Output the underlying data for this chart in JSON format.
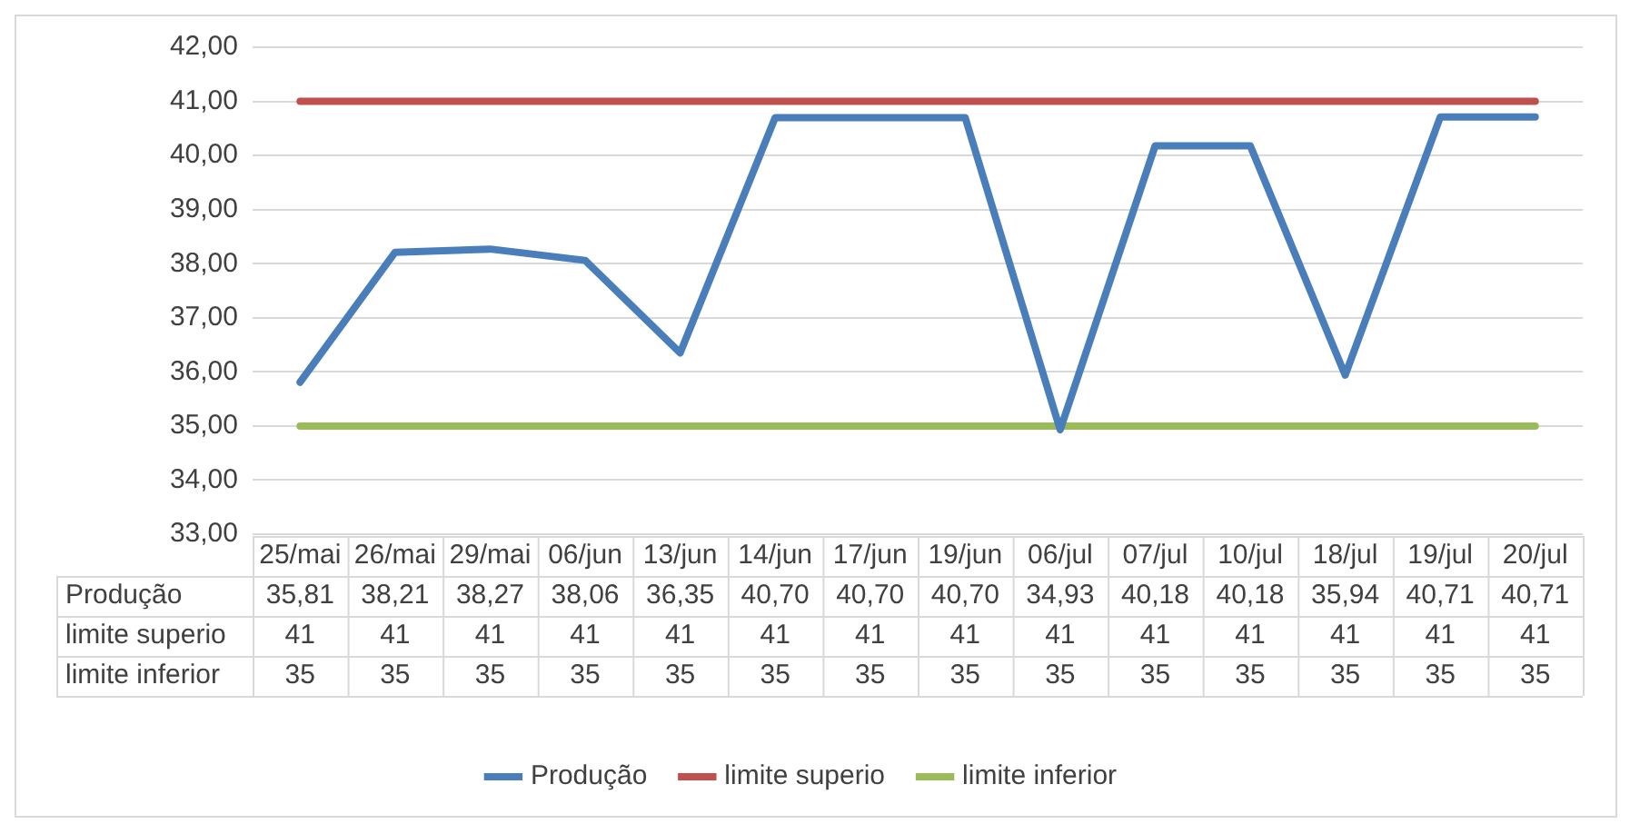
{
  "chart_data": {
    "type": "line",
    "categories": [
      "25/mai",
      "26/mai",
      "29/mai",
      "06/jun",
      "13/jun",
      "14/jun",
      "17/jun",
      "19/jun",
      "06/jul",
      "07/jul",
      "10/jul",
      "18/jul",
      "19/jul",
      "20/jul"
    ],
    "series": [
      {
        "name": "Produção",
        "color": "#4a7ebb",
        "values": [
          35.81,
          38.21,
          38.27,
          38.06,
          36.35,
          40.7,
          40.7,
          40.7,
          34.93,
          40.18,
          40.18,
          35.94,
          40.71,
          40.71
        ],
        "value_labels": [
          "35,81",
          "38,21",
          "38,27",
          "38,06",
          "36,35",
          "40,70",
          "40,70",
          "40,70",
          "34,93",
          "40,18",
          "40,18",
          "35,94",
          "40,71",
          "40,71"
        ]
      },
      {
        "name": "limite superio",
        "color": "#c0504d",
        "values": [
          41,
          41,
          41,
          41,
          41,
          41,
          41,
          41,
          41,
          41,
          41,
          41,
          41,
          41
        ],
        "value_labels": [
          "41",
          "41",
          "41",
          "41",
          "41",
          "41",
          "41",
          "41",
          "41",
          "41",
          "41",
          "41",
          "41",
          "41"
        ]
      },
      {
        "name": "limite inferior",
        "color": "#9bbb59",
        "values": [
          35,
          35,
          35,
          35,
          35,
          35,
          35,
          35,
          35,
          35,
          35,
          35,
          35,
          35
        ],
        "value_labels": [
          "35",
          "35",
          "35",
          "35",
          "35",
          "35",
          "35",
          "35",
          "35",
          "35",
          "35",
          "35",
          "35",
          "35"
        ]
      }
    ],
    "ylim": [
      33,
      42
    ],
    "yticks": [
      {
        "value": 33,
        "label": "33,00"
      },
      {
        "value": 34,
        "label": "34,00"
      },
      {
        "value": 35,
        "label": "35,00"
      },
      {
        "value": 36,
        "label": "36,00"
      },
      {
        "value": 37,
        "label": "37,00"
      },
      {
        "value": 38,
        "label": "38,00"
      },
      {
        "value": 39,
        "label": "39,00"
      },
      {
        "value": 40,
        "label": "40,00"
      },
      {
        "value": 41,
        "label": "41,00"
      },
      {
        "value": 42,
        "label": "42,00"
      }
    ],
    "grid": "y",
    "legend": "bottom",
    "marker": "none",
    "line_style": "solid"
  }
}
